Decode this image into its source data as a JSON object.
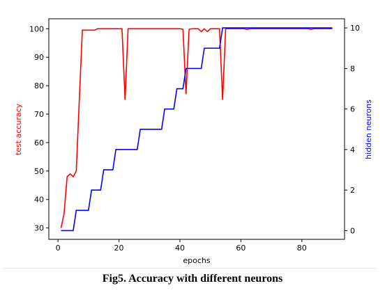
{
  "chart_data": {
    "type": "line",
    "xlabel": "epochs",
    "ylabel_left": "test accuracy",
    "ylabel_right": "hidden neurons",
    "xlim": [
      -3,
      94
    ],
    "ylim_left": [
      26,
      103.5
    ],
    "ylim_right": [
      -0.43,
      10.45
    ],
    "xticks": [
      0,
      20,
      40,
      60,
      80
    ],
    "yticks_left": [
      30,
      40,
      50,
      60,
      70,
      80,
      90,
      100
    ],
    "yticks_right": [
      0,
      2,
      4,
      6,
      8,
      10
    ],
    "grid": false,
    "series": [
      {
        "axis": "left",
        "color": "#ff0000",
        "x": [
          1,
          2,
          3,
          4,
          5,
          6,
          7,
          8,
          9,
          10,
          11,
          12,
          13,
          14,
          15,
          16,
          17,
          18,
          19,
          20,
          21,
          22,
          23,
          24,
          25,
          26,
          27,
          28,
          29,
          30,
          31,
          32,
          33,
          34,
          35,
          36,
          37,
          38,
          39,
          40,
          41,
          42,
          43,
          44,
          45,
          46,
          47,
          48,
          49,
          50,
          51,
          52,
          53,
          54,
          55,
          56,
          57,
          58,
          59,
          60,
          61,
          62,
          63,
          64,
          65,
          66,
          67,
          68,
          69,
          70,
          71,
          72,
          73,
          74,
          75,
          76,
          77,
          78,
          79,
          80,
          81,
          82,
          83,
          84,
          85,
          86,
          87,
          88,
          89,
          90
        ],
        "values": [
          30,
          35,
          48,
          49,
          48,
          50,
          75,
          99.5,
          99.5,
          99.5,
          99.5,
          99.5,
          100,
          100,
          100,
          100,
          100,
          100,
          100,
          100,
          100,
          75,
          100,
          100,
          100,
          100,
          100,
          100,
          100,
          100,
          100,
          100,
          100,
          100,
          100,
          100,
          100,
          100,
          100,
          100,
          99.8,
          77,
          99.8,
          100,
          100,
          100,
          99,
          100,
          99,
          100,
          100,
          100,
          100,
          75,
          100,
          100,
          100,
          100,
          100,
          100,
          100,
          99.8,
          100,
          100,
          100,
          100,
          100,
          100,
          100,
          100,
          100,
          100,
          100,
          100,
          100,
          100,
          100,
          100,
          100,
          100,
          100,
          100,
          99.8,
          100,
          100,
          100,
          100,
          100,
          100,
          100
        ]
      },
      {
        "axis": "right",
        "color": "#0000ff",
        "x": [
          1,
          5,
          6,
          10,
          11,
          14,
          15,
          18,
          19,
          22,
          23,
          26,
          27,
          30,
          31,
          34,
          35,
          38,
          39,
          40,
          41,
          42,
          43,
          46,
          47,
          48,
          49,
          52,
          53,
          54,
          55,
          56,
          57,
          60,
          61,
          62,
          63,
          70,
          71,
          85,
          86,
          90
        ],
        "values": [
          0,
          0,
          1,
          1,
          2,
          2,
          3,
          3,
          4,
          4,
          4,
          4,
          5,
          5,
          5,
          5,
          6,
          6,
          7,
          7,
          7,
          8,
          8,
          8,
          8,
          9,
          9,
          9,
          9,
          10,
          10,
          10,
          10,
          10,
          10,
          10,
          10,
          10,
          10,
          10,
          10,
          10
        ]
      }
    ]
  },
  "caption": "Fig5. Accuracy with different neurons"
}
